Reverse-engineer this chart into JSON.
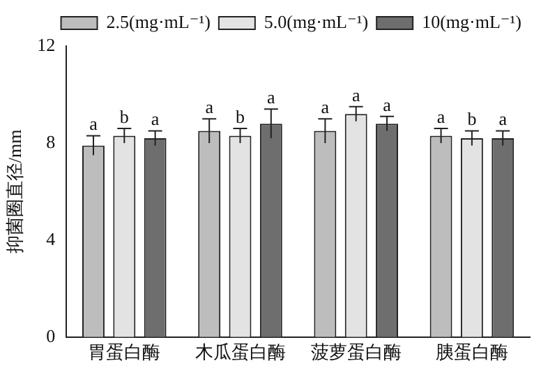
{
  "chart_data": {
    "type": "bar",
    "ylabel": "抑菌圈直径/mm",
    "categories": [
      "胃蛋白酶",
      "木瓜蛋白酶",
      "菠萝蛋白酶",
      "胰蛋白酶"
    ],
    "series": [
      {
        "name": "2.5(mg·mL⁻¹)",
        "color": "#bdbdbd",
        "values": [
          7.9,
          8.5,
          8.5,
          8.3
        ],
        "errors": [
          0.4,
          0.5,
          0.5,
          0.3
        ],
        "value_labels": [
          "a",
          "a",
          "a",
          "a"
        ]
      },
      {
        "name": "5.0(mg·mL⁻¹)",
        "color": "#e3e3e3",
        "values": [
          8.3,
          8.3,
          9.2,
          8.2
        ],
        "errors": [
          0.3,
          0.3,
          0.3,
          0.3
        ],
        "value_labels": [
          "b",
          "b",
          "a",
          "b"
        ]
      },
      {
        "name": "10(mg·mL⁻¹)",
        "color": "#6e6e6e",
        "values": [
          8.2,
          8.8,
          8.8,
          8.2
        ],
        "errors": [
          0.3,
          0.6,
          0.3,
          0.3
        ],
        "value_labels": [
          "a",
          "a",
          "a",
          "a"
        ]
      }
    ],
    "ylim": [
      0,
      12
    ],
    "yticks": [
      0,
      4,
      8,
      12
    ],
    "grid": false,
    "legend": "top"
  }
}
